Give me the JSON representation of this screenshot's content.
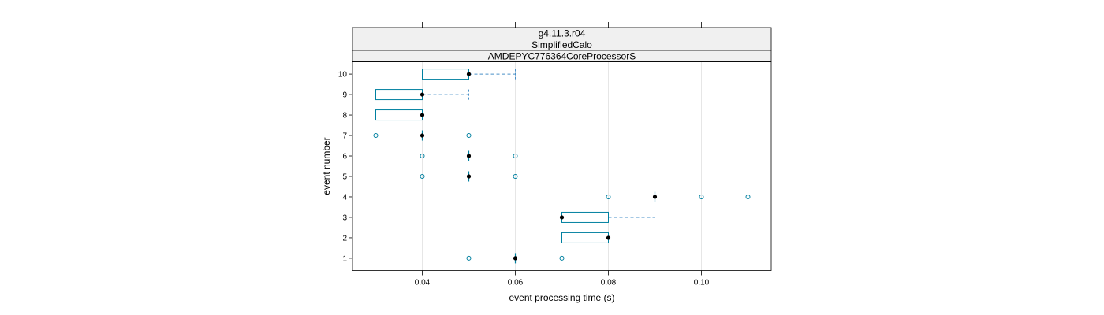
{
  "chart_data": {
    "type": "boxplot",
    "strips": [
      "g4.11.3.r04",
      "SimplifiedCalo",
      "AMDEPYC776364CoreProcessorS"
    ],
    "xlabel": "event processing time (s)",
    "ylabel": "event number",
    "xlim": [
      0.025,
      0.115
    ],
    "ylim": [
      0.4,
      10.6
    ],
    "x_ticks": [
      0.04,
      0.06,
      0.08,
      0.1
    ],
    "x_tick_labels": [
      "0.04",
      "0.06",
      "0.08",
      "0.10"
    ],
    "y_ticks": [
      1,
      2,
      3,
      4,
      5,
      6,
      7,
      8,
      9,
      10
    ],
    "y_tick_labels": [
      "1",
      "2",
      "3",
      "4",
      "5",
      "6",
      "7",
      "8",
      "9",
      "10"
    ],
    "grid": true,
    "colors": {
      "box": "#0080a0",
      "whisker": "#4a90c8",
      "median": "#000000",
      "outlier": "#0080a0",
      "grid": "#e6e6e6"
    },
    "boxes": [
      {
        "event": 1,
        "q1": 0.06,
        "median": 0.06,
        "q3": 0.06,
        "wlo": 0.06,
        "whi": 0.06,
        "outliers": [
          0.05,
          0.07
        ]
      },
      {
        "event": 2,
        "q1": 0.07,
        "median": 0.08,
        "q3": 0.08,
        "wlo": 0.07,
        "whi": 0.08,
        "outliers": []
      },
      {
        "event": 3,
        "q1": 0.07,
        "median": 0.07,
        "q3": 0.08,
        "wlo": 0.07,
        "whi": 0.09,
        "outliers": []
      },
      {
        "event": 4,
        "q1": 0.09,
        "median": 0.09,
        "q3": 0.09,
        "wlo": 0.09,
        "whi": 0.09,
        "outliers": [
          0.08,
          0.1,
          0.11
        ]
      },
      {
        "event": 5,
        "q1": 0.05,
        "median": 0.05,
        "q3": 0.05,
        "wlo": 0.05,
        "whi": 0.05,
        "outliers": [
          0.04,
          0.06
        ]
      },
      {
        "event": 6,
        "q1": 0.05,
        "median": 0.05,
        "q3": 0.05,
        "wlo": 0.05,
        "whi": 0.05,
        "outliers": [
          0.04,
          0.06
        ]
      },
      {
        "event": 7,
        "q1": 0.04,
        "median": 0.04,
        "q3": 0.04,
        "wlo": 0.04,
        "whi": 0.04,
        "outliers": [
          0.03,
          0.05
        ]
      },
      {
        "event": 8,
        "q1": 0.03,
        "median": 0.04,
        "q3": 0.04,
        "wlo": 0.03,
        "whi": 0.04,
        "outliers": []
      },
      {
        "event": 9,
        "q1": 0.03,
        "median": 0.04,
        "q3": 0.04,
        "wlo": 0.03,
        "whi": 0.05,
        "outliers": []
      },
      {
        "event": 10,
        "q1": 0.04,
        "median": 0.05,
        "q3": 0.05,
        "wlo": 0.04,
        "whi": 0.06,
        "outliers": []
      }
    ]
  }
}
